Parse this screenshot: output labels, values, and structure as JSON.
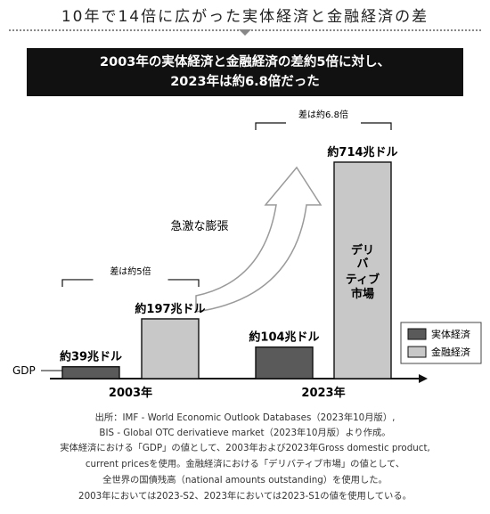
{
  "title": "10年で14倍に広がった実体経済と金融経済の差",
  "banner": {
    "line1": "2003年の実体経済と金融経済の差約5倍に対し、",
    "line2": "2023年は約6.8倍だった"
  },
  "chart_data": {
    "type": "bar",
    "categories": [
      "2003年",
      "2023年"
    ],
    "series": [
      {
        "name": "実体経済",
        "values": [
          39,
          104
        ],
        "labels": [
          "約39兆ドル",
          "約104兆ドル"
        ],
        "color": "#5a5a5a"
      },
      {
        "name": "金融経済",
        "values": [
          197,
          714
        ],
        "labels": [
          "約197兆ドル",
          "約714兆ドル"
        ],
        "color": "#c8c8c8"
      }
    ],
    "ylim": [
      0,
      714
    ],
    "legend_position": "right",
    "annotations": {
      "gap_2003": "差は約5倍",
      "gap_2023": "差は約6.8倍",
      "arrow": "急激な膨張",
      "gdp": "GDP",
      "derivative": [
        "デリ",
        "バ",
        "ティブ",
        "市場"
      ]
    }
  },
  "sources": [
    "出所：IMF - World Economic Outlook Databases（2023年10月版）,",
    "BIS - Global OTC derivatieve market（2023年10月版）より作成。",
    "実体経済における「GDP」の値として、2003年および2023年Gross domestic product,",
    "current pricesを使用。金融経済における「デリバティブ市場」の値として、",
    "全世界の国債残高（national amounts outstanding）を使用した。",
    "2003年においては2023-S2、2023年においては2023-S1の値を使用している。"
  ]
}
